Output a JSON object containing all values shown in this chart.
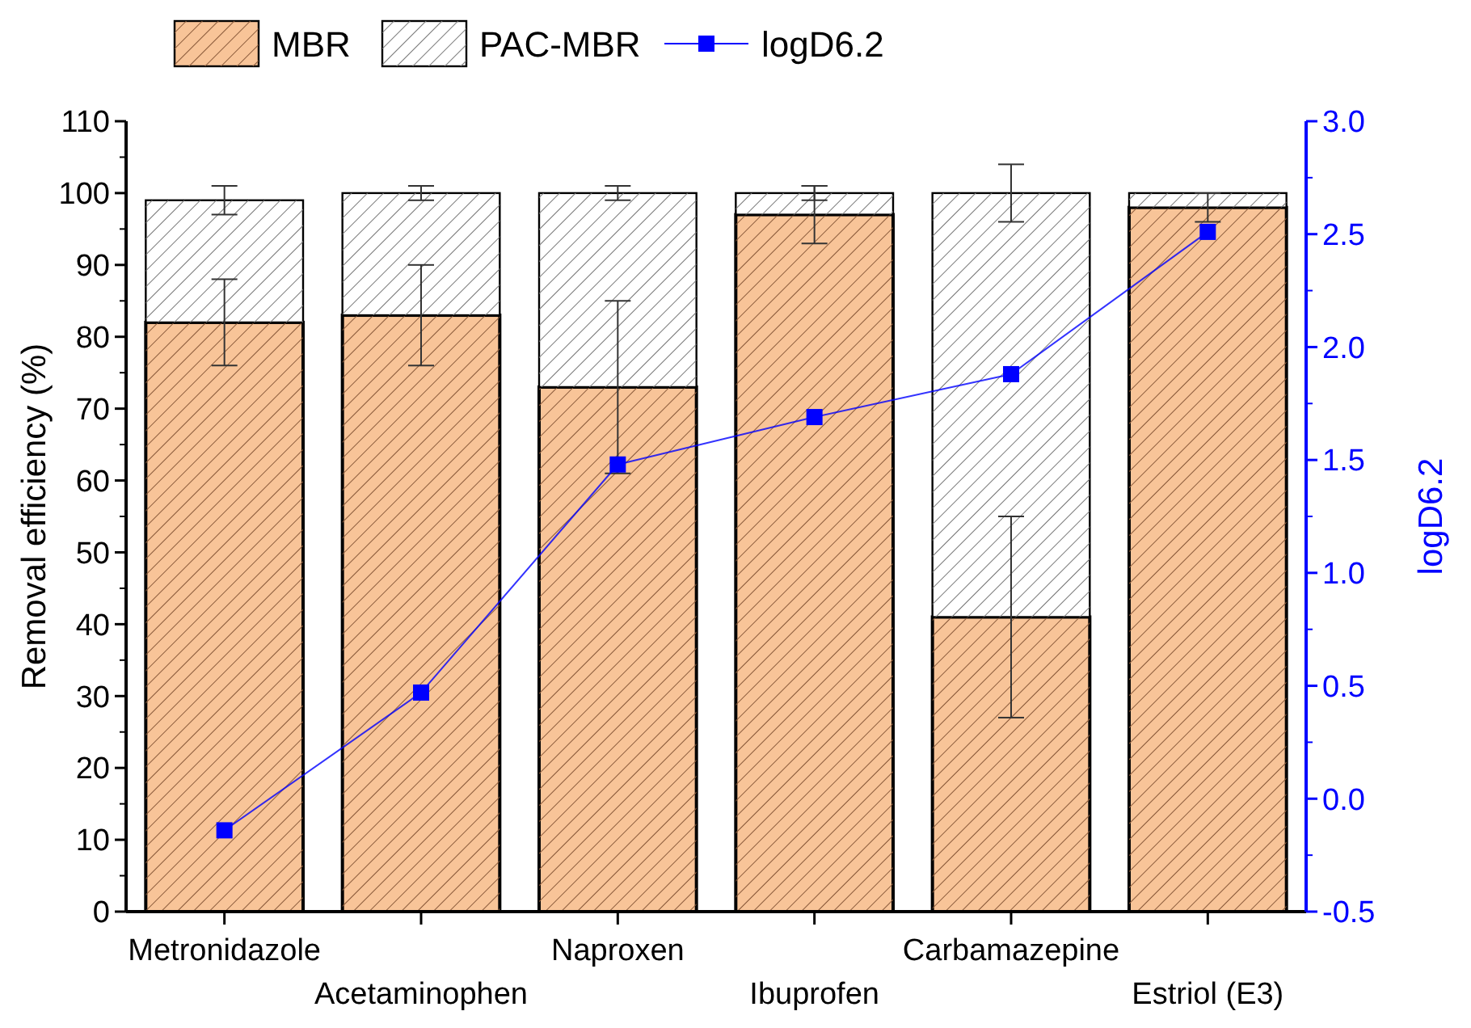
{
  "chart_data": {
    "type": "bar",
    "stacked": true,
    "ylabel": "Removal efficiency (%)",
    "y2label": "logD6.2",
    "categories": [
      "Metronidazole",
      "Acetaminophen",
      "Naproxen",
      "Ibuprofen",
      "Carbamazepine",
      "Estriol (E3)"
    ],
    "series": [
      {
        "name": "MBR",
        "color": "#f8c498",
        "values": [
          82,
          83,
          73,
          97,
          41,
          98
        ],
        "errors": [
          6,
          7,
          12,
          4,
          14,
          2
        ]
      },
      {
        "name": "PAC-MBR",
        "color": "#ffffff",
        "values": [
          17,
          17,
          27,
          3,
          59,
          2
        ],
        "errors": [
          2,
          1,
          1,
          1,
          4,
          null
        ]
      },
      {
        "name": "logD6.2",
        "type": "line",
        "axis": "y2",
        "color": "#0000ff",
        "marker": "square",
        "values": [
          -0.14,
          0.47,
          1.48,
          1.69,
          1.88,
          2.51
        ]
      }
    ],
    "ylim": [
      0,
      110
    ],
    "yticks": [
      0,
      10,
      20,
      30,
      40,
      50,
      60,
      70,
      80,
      90,
      100,
      110
    ],
    "y2lim": [
      -0.5,
      3.0
    ],
    "y2ticks": [
      -0.5,
      {
        "value": 0,
        "label": "0.0"
      },
      0.5,
      {
        "value": 1,
        "label": "1.0"
      },
      1.5,
      {
        "value": 2,
        "label": "2.0"
      },
      2.5,
      {
        "value": 3,
        "label": "3.0"
      }
    ],
    "legend": "top"
  }
}
